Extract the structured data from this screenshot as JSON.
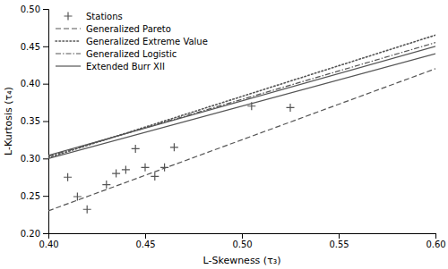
{
  "chart_data": {
    "type": "line",
    "xlabel": "L-Skewness (τ₃)",
    "ylabel": "L-Kurtosis (τ₄)",
    "xlim": [
      0.4,
      0.6
    ],
    "ylim": [
      0.2,
      0.5
    ],
    "xticks": [
      {
        "value": 0.4,
        "label": "0.40"
      },
      0.45,
      {
        "value": 0.5,
        "label": "0.50"
      },
      0.55,
      {
        "value": 0.6,
        "label": "0.60"
      }
    ],
    "yticks": [
      {
        "value": 0.2,
        "label": "0.20"
      },
      0.25,
      {
        "value": 0.3,
        "label": "0.30"
      },
      0.35,
      {
        "value": 0.4,
        "label": "0.40"
      },
      0.45,
      {
        "value": 0.5,
        "label": "0.50"
      }
    ],
    "color": "#555555",
    "grid": false,
    "legend": "upper-left",
    "series": [
      {
        "name": "Stations",
        "type": "scatter",
        "marker": "plus",
        "x": [
          0.41,
          0.415,
          0.42,
          0.43,
          0.435,
          0.44,
          0.445,
          0.45,
          0.455,
          0.46,
          0.465,
          0.505,
          0.525
        ],
        "values": [
          0.275,
          0.249,
          0.232,
          0.265,
          0.28,
          0.285,
          0.313,
          0.288,
          0.276,
          0.288,
          0.315,
          0.37,
          0.368
        ]
      },
      {
        "name": "Generalized Pareto",
        "type": "line",
        "line_style": "dashed",
        "x": [
          0.4,
          0.6
        ],
        "values": [
          0.23,
          0.42
        ]
      },
      {
        "name": "Generalized Extreme Value",
        "type": "line",
        "line_style": "dotted",
        "x": [
          0.4,
          0.6
        ],
        "values": [
          0.301,
          0.465
        ]
      },
      {
        "name": "Generalized Logistic",
        "type": "line",
        "line_style": "dashdot",
        "x": [
          0.4,
          0.6
        ],
        "values": [
          0.303,
          0.455
        ]
      },
      {
        "name": "Extended Burr XII",
        "type": "line",
        "line_style": "solid",
        "x": [
          0.4,
          0.6
        ],
        "values": [
          0.304,
          0.45
        ]
      },
      {
        "type": "line",
        "line_style": "solid",
        "x": [
          0.4,
          0.6
        ],
        "values": [
          0.3,
          0.44
        ]
      }
    ]
  }
}
